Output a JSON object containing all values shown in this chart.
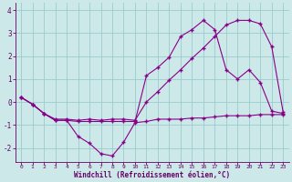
{
  "background_color": "#cce8e8",
  "grid_color": "#99cccc",
  "line_color": "#880088",
  "marker_color": "#880088",
  "xlabel": "Windchill (Refroidissement éolien,°C)",
  "xlabel_color": "#660066",
  "tick_color": "#660066",
  "ylim": [
    -2.6,
    4.3
  ],
  "xlim": [
    -0.5,
    23.5
  ],
  "yticks": [
    -2,
    -1,
    0,
    1,
    2,
    3,
    4
  ],
  "xticks": [
    0,
    1,
    2,
    3,
    4,
    5,
    6,
    7,
    8,
    9,
    10,
    11,
    12,
    13,
    14,
    15,
    16,
    17,
    18,
    19,
    20,
    21,
    22,
    23
  ],
  "series": [
    {
      "x": [
        0,
        1,
        2,
        3,
        4,
        5,
        6,
        7,
        8,
        9,
        10,
        11,
        12,
        13,
        14,
        15,
        16,
        17,
        18,
        19,
        20,
        21,
        22,
        23
      ],
      "y": [
        0.2,
        -0.1,
        -0.5,
        -0.8,
        -0.8,
        -1.5,
        -1.8,
        -2.25,
        -2.35,
        -1.75,
        -0.9,
        -0.85,
        -0.75,
        -0.75,
        -0.75,
        -0.7,
        -0.7,
        -0.65,
        -0.6,
        -0.6,
        -0.6,
        -0.55,
        -0.55,
        -0.55
      ]
    },
    {
      "x": [
        0,
        1,
        2,
        3,
        4,
        5,
        6,
        7,
        8,
        9,
        10,
        11,
        12,
        13,
        14,
        15,
        16,
        17,
        18,
        19,
        20,
        21,
        22,
        23
      ],
      "y": [
        0.2,
        -0.1,
        -0.5,
        -0.8,
        -0.8,
        -0.85,
        -0.85,
        -0.85,
        -0.85,
        -0.85,
        -0.85,
        1.15,
        1.5,
        1.95,
        2.85,
        3.15,
        3.55,
        3.15,
        1.4,
        1.0,
        1.4,
        0.85,
        -0.4,
        -0.5
      ]
    },
    {
      "x": [
        0,
        1,
        2,
        3,
        4,
        5,
        6,
        7,
        8,
        9,
        10,
        11,
        12,
        13,
        14,
        15,
        16,
        17,
        18,
        19,
        20,
        21,
        22,
        23
      ],
      "y": [
        0.2,
        -0.1,
        -0.5,
        -0.75,
        -0.75,
        -0.8,
        -0.75,
        -0.8,
        -0.75,
        -0.75,
        -0.8,
        0.0,
        0.45,
        0.95,
        1.4,
        1.9,
        2.35,
        2.85,
        3.35,
        3.55,
        3.55,
        3.4,
        2.4,
        -0.45
      ]
    }
  ]
}
